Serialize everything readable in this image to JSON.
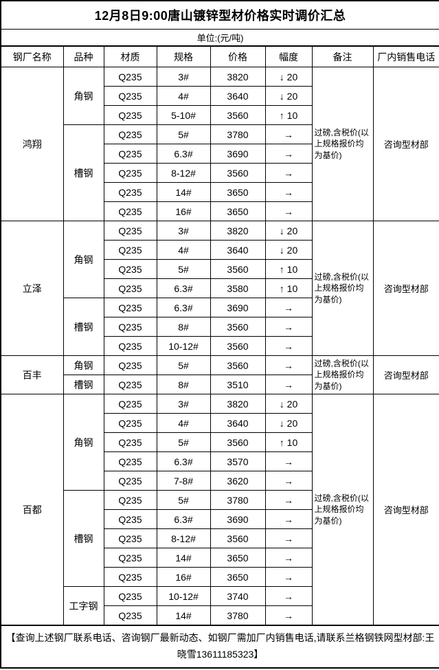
{
  "title": "12月8日9:00唐山镀锌型材价格实时调价汇总",
  "unit_label": "单位:(元/吨)",
  "columns": {
    "mill": "钢厂名称",
    "category": "品种",
    "material": "材质",
    "spec": "规格",
    "price": "价格",
    "change": "幅度",
    "note": "备注",
    "phone": "厂内销售电话"
  },
  "colors": {
    "text": "#000000",
    "border": "#000000",
    "background": "#ffffff"
  },
  "mills": [
    {
      "name": "鸿翔",
      "note": "过磅,含税价(以上规格报价均为基价)",
      "phone": "咨询型材部",
      "categories": [
        {
          "name": "角钢",
          "rows": [
            {
              "material": "Q235",
              "spec": "3#",
              "price": 3820,
              "change": "↓ 20"
            },
            {
              "material": "Q235",
              "spec": "4#",
              "price": 3640,
              "change": "↓ 20"
            },
            {
              "material": "Q235",
              "spec": "5-10#",
              "price": 3560,
              "change": "↑ 10"
            }
          ]
        },
        {
          "name": "槽钢",
          "rows": [
            {
              "material": "Q235",
              "spec": "5#",
              "price": 3780,
              "change": "→"
            },
            {
              "material": "Q235",
              "spec": "6.3#",
              "price": 3690,
              "change": "→"
            },
            {
              "material": "Q235",
              "spec": "8-12#",
              "price": 3560,
              "change": "→"
            },
            {
              "material": "Q235",
              "spec": "14#",
              "price": 3650,
              "change": "→"
            },
            {
              "material": "Q235",
              "spec": "16#",
              "price": 3650,
              "change": "→"
            }
          ]
        }
      ]
    },
    {
      "name": "立泽",
      "note": "过磅,含税价(以上规格报价均为基价)",
      "phone": "咨询型材部",
      "categories": [
        {
          "name": "角钢",
          "rows": [
            {
              "material": "Q235",
              "spec": "3#",
              "price": 3820,
              "change": "↓ 20"
            },
            {
              "material": "Q235",
              "spec": "4#",
              "price": 3640,
              "change": "↓ 20"
            },
            {
              "material": "Q235",
              "spec": "5#",
              "price": 3560,
              "change": "↑ 10"
            },
            {
              "material": "Q235",
              "spec": "6.3#",
              "price": 3580,
              "change": "↑ 10"
            }
          ]
        },
        {
          "name": "槽钢",
          "rows": [
            {
              "material": "Q235",
              "spec": "6.3#",
              "price": 3690,
              "change": "→"
            },
            {
              "material": "Q235",
              "spec": "8#",
              "price": 3560,
              "change": "→"
            },
            {
              "material": "Q235",
              "spec": "10-12#",
              "price": 3560,
              "change": "→"
            }
          ]
        }
      ]
    },
    {
      "name": "百丰",
      "note": "过磅,含税价(以上规格报价均为基价)",
      "phone": "咨询型材部",
      "categories": [
        {
          "name": "角钢",
          "rows": [
            {
              "material": "Q235",
              "spec": "5#",
              "price": 3560,
              "change": "→"
            }
          ]
        },
        {
          "name": "槽钢",
          "rows": [
            {
              "material": "Q235",
              "spec": "8#",
              "price": 3510,
              "change": "→"
            }
          ]
        }
      ]
    },
    {
      "name": "百都",
      "note": "过磅,含税价(以上规格报价均为基价)",
      "phone": "咨询型材部",
      "categories": [
        {
          "name": "角钢",
          "rows": [
            {
              "material": "Q235",
              "spec": "3#",
              "price": 3820,
              "change": "↓ 20"
            },
            {
              "material": "Q235",
              "spec": "4#",
              "price": 3640,
              "change": "↓ 20"
            },
            {
              "material": "Q235",
              "spec": "5#",
              "price": 3560,
              "change": "↑ 10"
            },
            {
              "material": "Q235",
              "spec": "6.3#",
              "price": 3570,
              "change": "→"
            },
            {
              "material": "Q235",
              "spec": "7-8#",
              "price": 3620,
              "change": "→"
            }
          ]
        },
        {
          "name": "槽钢",
          "rows": [
            {
              "material": "Q235",
              "spec": "5#",
              "price": 3780,
              "change": "→"
            },
            {
              "material": "Q235",
              "spec": "6.3#",
              "price": 3690,
              "change": "→"
            },
            {
              "material": "Q235",
              "spec": "8-12#",
              "price": 3560,
              "change": "→"
            },
            {
              "material": "Q235",
              "spec": "14#",
              "price": 3650,
              "change": "→"
            },
            {
              "material": "Q235",
              "spec": "16#",
              "price": 3650,
              "change": "→"
            }
          ]
        },
        {
          "name": "工字钢",
          "rows": [
            {
              "material": "Q235",
              "spec": "10-12#",
              "price": 3740,
              "change": "→"
            },
            {
              "material": "Q235",
              "spec": "14#",
              "price": 3780,
              "change": "→"
            }
          ]
        }
      ]
    }
  ],
  "footer_note": "【查询上述钢厂联系电话、咨询钢厂最新动态、如钢厂需加厂内销售电话,请联系兰格钢铁网型材部:王晓雪13611185323】"
}
